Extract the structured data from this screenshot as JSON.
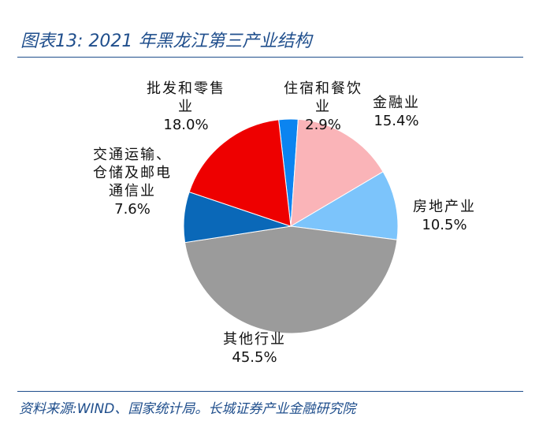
{
  "header": {
    "title": "图表13:  2021 年黑龙江第三产业结构"
  },
  "footer": {
    "source": "资料来源:WIND、国家统计局。长城证券产业金融研究院"
  },
  "chart_data": {
    "type": "pie",
    "title": "",
    "slices": [
      {
        "name": "住宿和餐饮业",
        "name_lines": [
          "住宿和餐饮",
          "业"
        ],
        "value": 2.9,
        "value_label": "2.9%",
        "color": "#0b84f0"
      },
      {
        "name": "金融业",
        "name_lines": [
          "金融业"
        ],
        "value": 15.4,
        "value_label": "15.4%",
        "color": "#fab4b8"
      },
      {
        "name": "房地产业",
        "name_lines": [
          "房地产业"
        ],
        "value": 10.5,
        "value_label": "10.5%",
        "color": "#7cc4fb"
      },
      {
        "name": "其他行业",
        "name_lines": [
          "其他行业"
        ],
        "value": 45.5,
        "value_label": "45.5%",
        "color": "#9b9b9b"
      },
      {
        "name": "交通运输、仓储及邮电通信业",
        "name_lines": [
          "交通运输、",
          "仓储及邮电",
          "通信业"
        ],
        "value": 7.6,
        "value_label": "7.6%",
        "color": "#0a68b8"
      },
      {
        "name": "批发和零售业",
        "name_lines": [
          "批发和零售",
          "业"
        ],
        "value": 18.0,
        "value_label": "18.0%",
        "color": "#ee0000"
      }
    ]
  }
}
